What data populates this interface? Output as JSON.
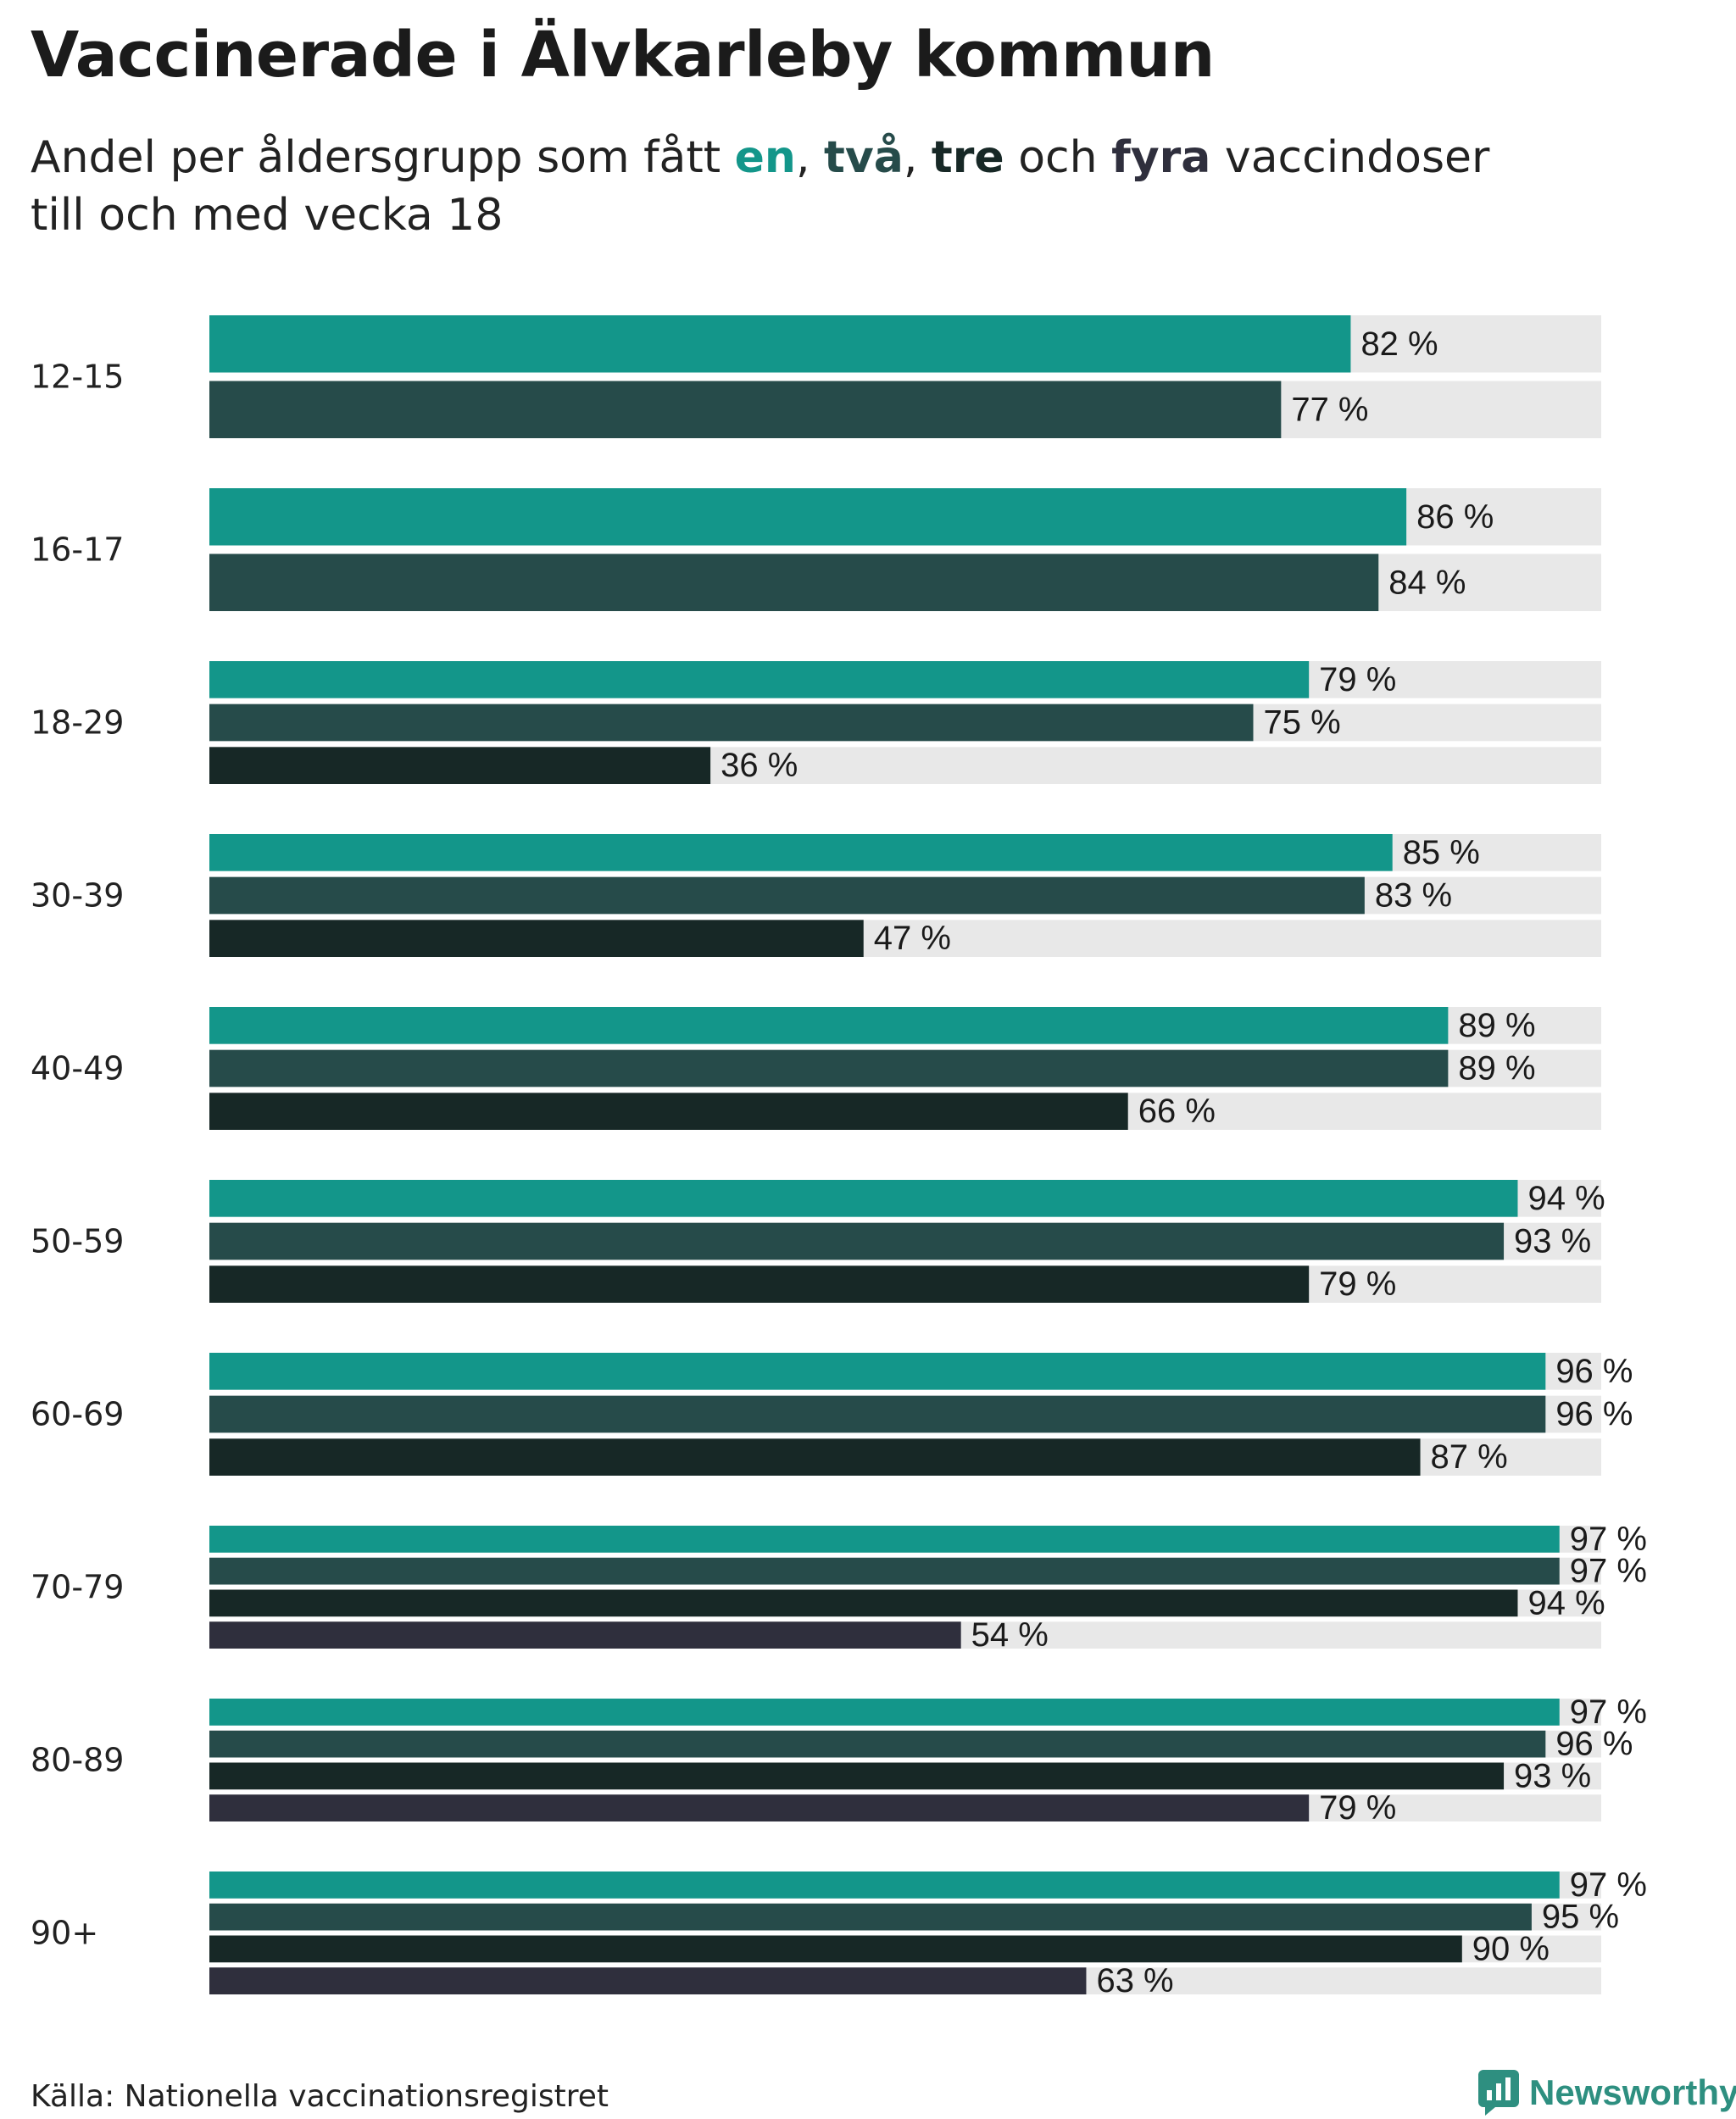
{
  "title": "Vaccinerade i Älvkarleby kommun",
  "subtitle": {
    "prefix": "Andel per åldersgrupp som fått ",
    "dose1": "en",
    "sep1": ", ",
    "dose2": "två",
    "sep2": ", ",
    "dose3": "tre",
    "conj": " och ",
    "dose4": "fyra",
    "suffix": " vaccindoser",
    "line2": "till och med vecka 18"
  },
  "colors": {
    "dose1": "#13968a",
    "dose2": "#264b4a",
    "dose3": "#172826",
    "dose4": "#2f2f3d",
    "track": "#e8e8e8"
  },
  "chart_data": {
    "type": "bar",
    "orientation": "horizontal",
    "xlim": [
      0,
      100
    ],
    "value_suffix": " %",
    "series_names": [
      "en",
      "två",
      "tre",
      "fyra"
    ],
    "groups": [
      {
        "label": "12-15",
        "values": [
          82,
          77
        ]
      },
      {
        "label": "16-17",
        "values": [
          86,
          84
        ]
      },
      {
        "label": "18-29",
        "values": [
          79,
          75,
          36
        ]
      },
      {
        "label": "30-39",
        "values": [
          85,
          83,
          47
        ]
      },
      {
        "label": "40-49",
        "values": [
          89,
          89,
          66
        ]
      },
      {
        "label": "50-59",
        "values": [
          94,
          93,
          79
        ]
      },
      {
        "label": "60-69",
        "values": [
          96,
          96,
          87
        ]
      },
      {
        "label": "70-79",
        "values": [
          97,
          97,
          94,
          54
        ]
      },
      {
        "label": "80-89",
        "values": [
          97,
          96,
          93,
          79
        ]
      },
      {
        "label": "90+",
        "values": [
          97,
          95,
          90,
          63
        ]
      }
    ]
  },
  "footer": {
    "source": "Källa: Nationella vaccinationsregistret",
    "brand": "Newsworthy"
  }
}
